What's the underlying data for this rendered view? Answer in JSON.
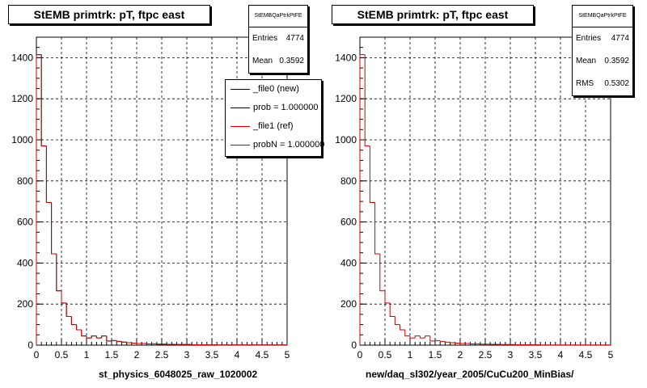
{
  "chart_data": [
    {
      "type": "bar",
      "title": "StEMB primtrk: pT, ftpc east",
      "xlabel": "st_physics_6048025_raw_1020002",
      "ylabel": "",
      "xlim": [
        0,
        5
      ],
      "ylim": [
        0,
        1500
      ],
      "xticks": [
        "0",
        "0.5",
        "1",
        "1.5",
        "2",
        "2.5",
        "3",
        "3.5",
        "4",
        "4.5",
        "5"
      ],
      "yticks": [
        "0",
        "200",
        "400",
        "600",
        "800",
        "1000",
        "1200",
        "1400"
      ],
      "grid": true,
      "bin_width": 0.1,
      "series": [
        {
          "name": "_file0 (new)",
          "color": "#000000",
          "values": [
            1415,
            970,
            695,
            445,
            265,
            205,
            140,
            100,
            75,
            45,
            35,
            45,
            35,
            45,
            20,
            22,
            18,
            15,
            12,
            10,
            8,
            8,
            6,
            6,
            5,
            5,
            4,
            4,
            3,
            3,
            3,
            2,
            2,
            2,
            2,
            2,
            1,
            1,
            1,
            1,
            1,
            1,
            1,
            1,
            1,
            1,
            1,
            1,
            1,
            1
          ]
        },
        {
          "name": "_file1 (ref)",
          "color": "#cc0000",
          "values": [
            1415,
            970,
            695,
            445,
            265,
            205,
            140,
            100,
            75,
            45,
            35,
            45,
            35,
            45,
            20,
            22,
            18,
            15,
            12,
            10,
            8,
            8,
            6,
            6,
            5,
            5,
            4,
            4,
            3,
            3,
            3,
            2,
            2,
            2,
            2,
            2,
            1,
            1,
            1,
            1,
            1,
            1,
            1,
            1,
            1,
            1,
            1,
            1,
            1,
            1
          ]
        }
      ]
    },
    {
      "type": "bar",
      "title": "StEMB primtrk: pT, ftpc east",
      "xlabel": "new/daq_sl302/year_2005/CuCu200_MinBias/",
      "ylabel": "",
      "xlim": [
        0,
        5
      ],
      "ylim": [
        0,
        1500
      ],
      "xticks": [
        "0",
        "0.5",
        "1",
        "1.5",
        "2",
        "2.5",
        "3",
        "3.5",
        "4",
        "4.5",
        "5"
      ],
      "yticks": [
        "0",
        "200",
        "400",
        "600",
        "800",
        "1000",
        "1200",
        "1400"
      ],
      "grid": true,
      "bin_width": 0.1,
      "series": [
        {
          "color": "#cc0000",
          "values": [
            1415,
            970,
            695,
            445,
            265,
            205,
            140,
            100,
            75,
            45,
            35,
            45,
            35,
            45,
            20,
            22,
            18,
            15,
            12,
            10,
            8,
            8,
            6,
            6,
            5,
            5,
            4,
            4,
            3,
            3,
            3,
            2,
            2,
            2,
            2,
            2,
            1,
            1,
            1,
            1,
            1,
            1,
            1,
            1,
            1,
            1,
            1,
            1,
            1,
            1
          ]
        }
      ]
    }
  ],
  "left_panel": {
    "stats": {
      "name": "StEMBQaPtrkPtFE",
      "rows": [
        {
          "label": "Entries",
          "value": "4774"
        },
        {
          "label": "Mean",
          "value": "0.3592"
        }
      ]
    },
    "legend": [
      {
        "label": "_file0 (new)",
        "color": "#000000"
      },
      {
        "label": "prob = 1.000000",
        "color": "#000000"
      },
      {
        "label": "_file1 (ref)",
        "color": "#cc0000"
      },
      {
        "label": "probN = 1.000000",
        "color": "#cc0000"
      }
    ]
  },
  "right_panel": {
    "stats": {
      "name": "StEMBQaPtrkPtFE",
      "rows": [
        {
          "label": "Entries",
          "value": "4774"
        },
        {
          "label": "Mean",
          "value": "0.3592"
        },
        {
          "label": "RMS",
          "value": "0.5302"
        }
      ]
    }
  }
}
